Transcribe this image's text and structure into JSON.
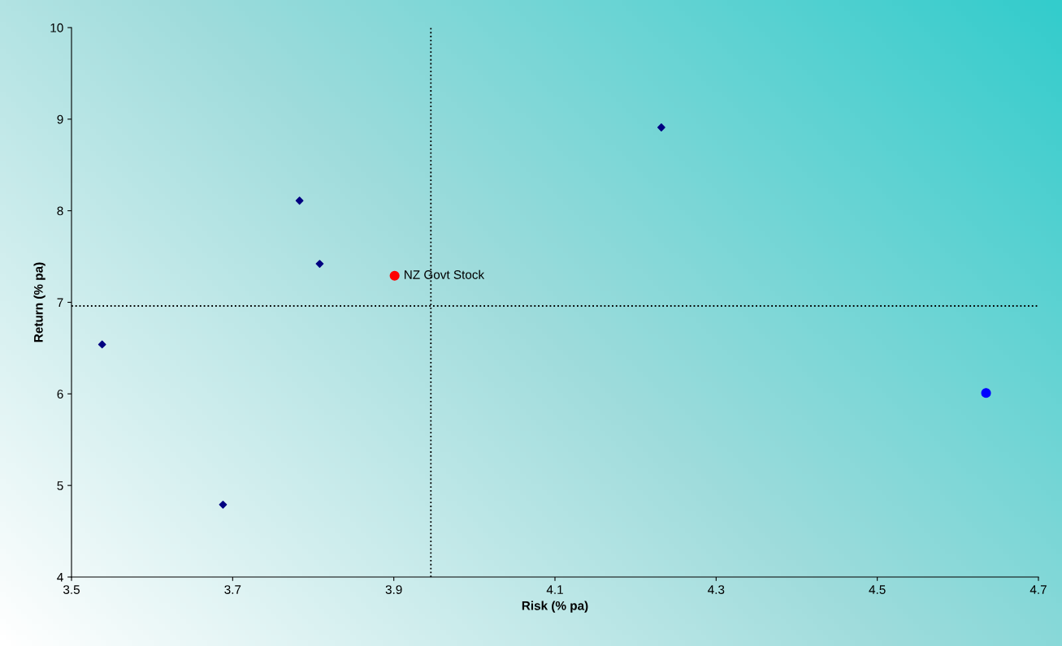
{
  "chart_data": {
    "type": "scatter",
    "xlabel": "Risk (% pa)",
    "ylabel": "Return (% pa)",
    "xlim": [
      3.5,
      4.7
    ],
    "xticks": [
      3.5,
      3.7,
      3.9,
      4.1,
      4.3,
      4.5,
      4.7
    ],
    "ylim": [
      4,
      10
    ],
    "yticks": [
      4,
      5,
      6,
      7,
      8,
      9,
      10
    ],
    "grid": false,
    "legend": false,
    "series": [
      {
        "color": "#000080",
        "marker": "diamond",
        "x": [
          3.538,
          3.688,
          3.783,
          3.808,
          4.232
        ],
        "values": [
          6.54,
          4.79,
          8.11,
          7.42,
          8.91
        ]
      },
      {
        "name": "NZ Govt Stock",
        "color": "#ff0000",
        "marker": "circle",
        "x": [
          3.901
        ],
        "values": [
          7.29
        ]
      },
      {
        "color": "#0000ff",
        "marker": "circle",
        "x": [
          4.635
        ],
        "values": [
          6.01
        ]
      }
    ],
    "ref_lines": [
      {
        "axis": "x",
        "value": 3.946,
        "color": "#000000",
        "line_style": "dotted"
      },
      {
        "axis": "y",
        "value": 6.96,
        "color": "#000000",
        "line_style": "dotted"
      }
    ]
  }
}
